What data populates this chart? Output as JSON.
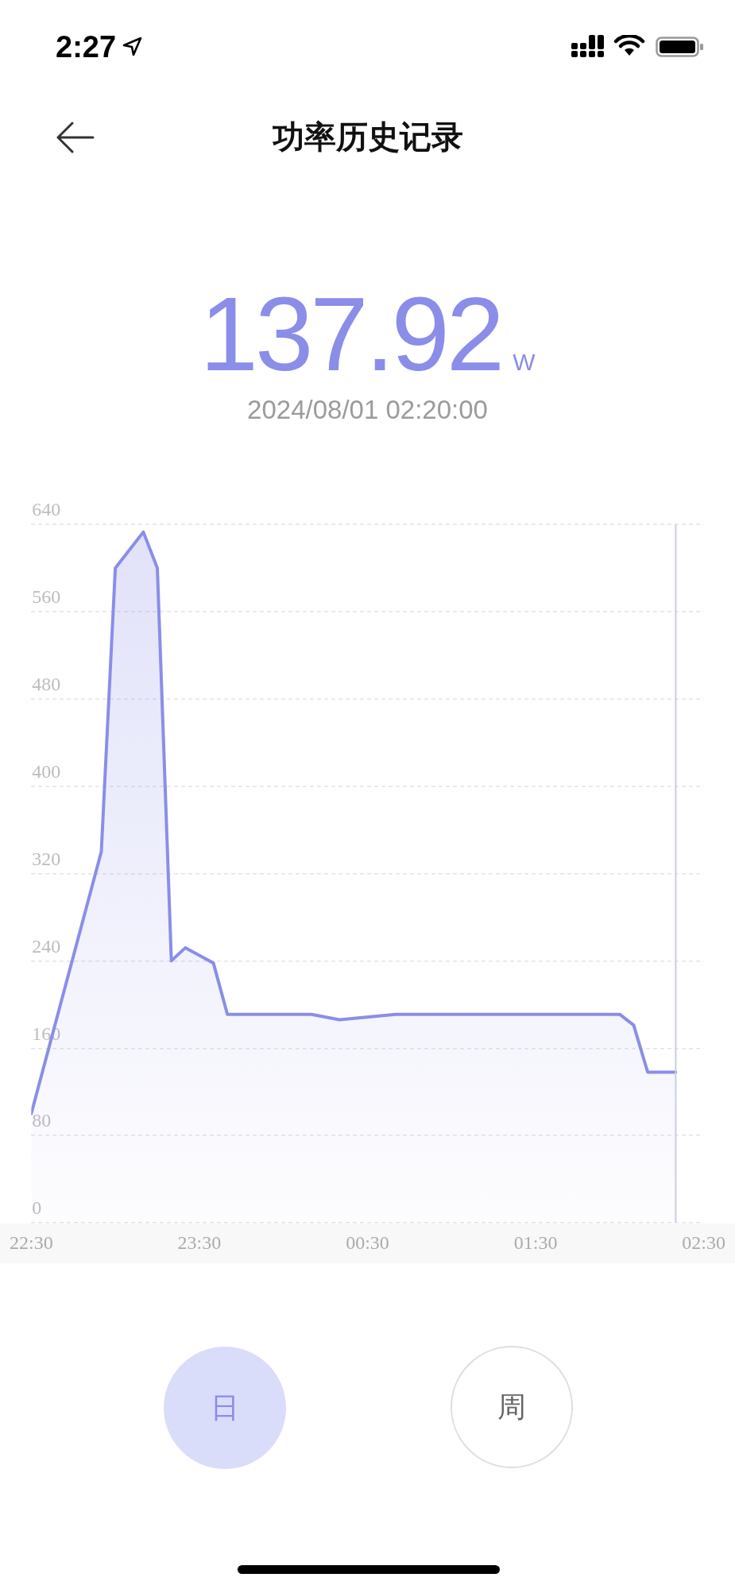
{
  "chart_data": {
    "type": "area",
    "title": "功率历史记录",
    "annotations": [
      "2:27",
      "137.92",
      "W",
      "2024/08/01 02:20:00",
      "日",
      "周"
    ],
    "x": [
      "2024-07-31T22:30",
      "2024-07-31T22:55",
      "2024-07-31T23:00",
      "2024-07-31T23:10",
      "2024-07-31T23:15",
      "2024-07-31T23:20",
      "2024-07-31T23:25",
      "2024-07-31T23:35",
      "2024-07-31T23:40",
      "2024-08-01T00:10",
      "2024-08-01T00:20",
      "2024-08-01T00:40",
      "2024-08-01T02:00",
      "2024-08-01T02:05",
      "2024-08-01T02:10",
      "2024-08-01T02:20"
    ],
    "values": [
      100,
      340,
      600,
      633,
      600,
      240,
      252,
      238,
      191,
      191,
      186,
      191,
      191,
      181,
      138,
      137.92
    ],
    "color": "#8a8ee8",
    "xlim": [
      "2024-07-31T22:30",
      "2024-08-01T02:30"
    ],
    "xticks": [
      {
        "value": "2024-07-31T22:30",
        "label": "22:30"
      },
      {
        "value": "2024-07-31T23:30",
        "label": "23:30"
      },
      {
        "value": "2024-08-01T00:30",
        "label": "00:30"
      },
      {
        "value": "2024-08-01T01:30",
        "label": "01:30"
      },
      {
        "value": "2024-08-01T02:30",
        "label": "02:30"
      }
    ],
    "ylim": [
      0,
      640
    ],
    "yticks": [
      0,
      80,
      160,
      240,
      320,
      400,
      480,
      560,
      640
    ],
    "ref_lines": [
      {
        "axis": "x",
        "value": "2024-08-01T02:20",
        "color": "#c9cde7"
      }
    ],
    "grid": "y",
    "marker": "none"
  }
}
